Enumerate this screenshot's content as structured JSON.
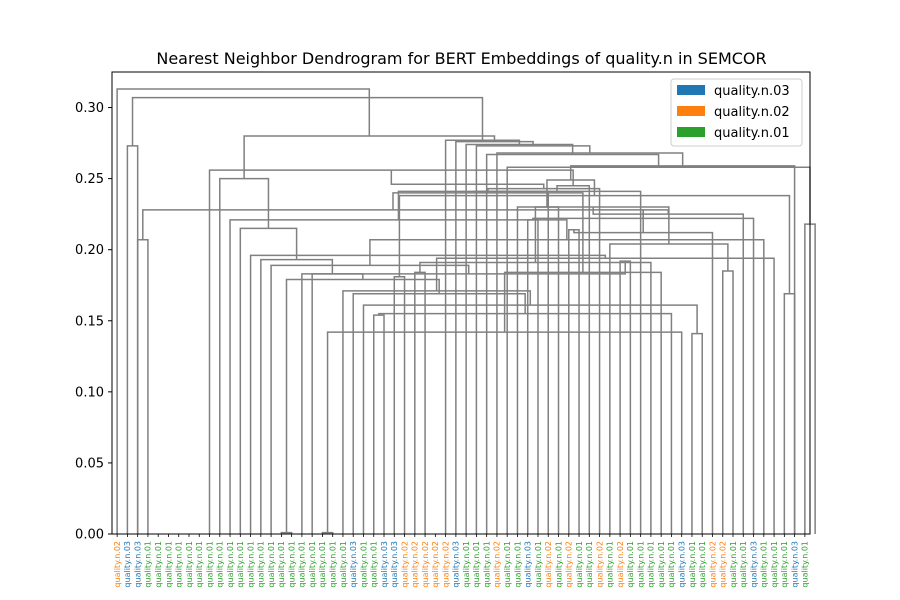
{
  "chart_data": {
    "type": "dendrogram",
    "title": "Nearest Neighbor Dendrogram for BERT Embeddings of quality.n in SEMCOR",
    "xlabel": "",
    "ylabel": "",
    "ylim": [
      0,
      0.325
    ],
    "yticks": [
      "0.00",
      "0.05",
      "0.10",
      "0.15",
      "0.20",
      "0.25",
      "0.30"
    ],
    "grid": false,
    "legend_position": "top-right",
    "link_color": "#808080",
    "senses": [
      {
        "name": "quality.n.03",
        "color": "#1f77b4"
      },
      {
        "name": "quality.n.02",
        "color": "#ff7f0e"
      },
      {
        "name": "quality.n.01",
        "color": "#2ca02c"
      }
    ],
    "leaves": [
      "quality.n.02",
      "quality.n.03",
      "quality.n.03",
      "quality.n.01",
      "quality.n.01",
      "quality.n.01",
      "quality.n.01",
      "quality.n.01",
      "quality.n.01",
      "quality.n.01",
      "quality.n.01",
      "quality.n.01",
      "quality.n.01",
      "quality.n.01",
      "quality.n.01",
      "quality.n.01",
      "quality.n.01",
      "quality.n.01",
      "quality.n.01",
      "quality.n.01",
      "quality.n.01",
      "quality.n.01",
      "quality.n.01",
      "quality.n.03",
      "quality.n.01",
      "quality.n.01",
      "quality.n.03",
      "quality.n.03",
      "quality.n.02",
      "quality.n.02",
      "quality.n.02",
      "quality.n.02",
      "quality.n.02",
      "quality.n.03",
      "quality.n.01",
      "quality.n.01",
      "quality.n.01",
      "quality.n.02",
      "quality.n.01",
      "quality.n.01",
      "quality.n.03",
      "quality.n.01",
      "quality.n.02",
      "quality.n.01",
      "quality.n.02",
      "quality.n.01",
      "quality.n.01",
      "quality.n.02",
      "quality.n.01",
      "quality.n.02",
      "quality.n.01",
      "quality.n.01",
      "quality.n.01",
      "quality.n.01",
      "quality.n.01",
      "quality.n.03",
      "quality.n.01",
      "quality.n.01",
      "quality.n.02",
      "quality.n.02",
      "quality.n.01",
      "quality.n.01",
      "quality.n.03",
      "quality.n.01",
      "quality.n.01",
      "quality.n.01",
      "quality.n.03",
      "quality.n.01"
    ],
    "links": [
      {
        "left": 16,
        "right": 17,
        "height": 0.001
      },
      {
        "left": 20,
        "right": 21,
        "height": 0.001
      },
      {
        "left": 56,
        "right": 57,
        "height": 0.141
      },
      {
        "left": 25,
        "right": 26,
        "height": 0.154
      },
      {
        "left": 55,
        "right": "L2",
        "height": 0.142
      },
      {
        "left": 54,
        "right": "L4",
        "height": 0.155
      },
      {
        "left": 24,
        "right": "L3",
        "height": 0.161
      },
      {
        "left": 23,
        "right": "L6",
        "height": 0.169
      },
      {
        "left": 22,
        "right": "L7",
        "height": 0.171
      },
      {
        "left": 65,
        "right": 66,
        "height": 0.169
      },
      {
        "left": 27,
        "right": 28,
        "height": 0.181
      },
      {
        "left": 29,
        "right": 30,
        "height": 0.184
      },
      {
        "left": 53,
        "right": "L5",
        "height": 0.184
      },
      {
        "left": 52,
        "right": "L12",
        "height": 0.191
      },
      {
        "left": 44,
        "right": 45,
        "height": 0.214
      },
      {
        "left": 59,
        "right": 60,
        "height": 0.185
      },
      {
        "left": 49,
        "right": 50,
        "height": 0.192
      },
      {
        "left": "L1",
        "right": "L8",
        "height": 0.179
      },
      {
        "left": 19,
        "right": "L17",
        "height": 0.183
      },
      {
        "left": 18,
        "right": "L18",
        "height": 0.183
      },
      {
        "left": 15,
        "right": "L19",
        "height": 0.189
      },
      {
        "left": 64,
        "right": "L9",
        "height": 0.194
      },
      {
        "left": 14,
        "right": "L20",
        "height": 0.193
      },
      {
        "left": 13,
        "right": "L22",
        "height": 0.196
      },
      {
        "left": 2,
        "right": 3,
        "height": 0.207
      },
      {
        "left": 58,
        "right": "L15",
        "height": 0.212
      },
      {
        "left": 48,
        "right": "L16",
        "height": 0.204
      },
      {
        "left": 40,
        "right": 41,
        "height": 0.221
      },
      {
        "left": 63,
        "right": "L21",
        "height": 0.207
      },
      {
        "left": 12,
        "right": "L23",
        "height": 0.215
      },
      {
        "left": 11,
        "right": "L29",
        "height": 0.221
      },
      {
        "left": 43,
        "right": "L14",
        "height": 0.23
      },
      {
        "left": 39,
        "right": "L27",
        "height": 0.23
      },
      {
        "left": 62,
        "right": "L28",
        "height": 0.222
      },
      {
        "left": 61,
        "right": "L33",
        "height": 0.225
      },
      {
        "left": "L25",
        "right": "L34",
        "height": 0.228
      },
      {
        "left": "L26",
        "right": "L35",
        "height": 0.228
      },
      {
        "left": "L10",
        "right": "L11",
        "height": 0.238
      },
      {
        "left": 42,
        "right": "L31",
        "height": 0.241
      },
      {
        "left": "L13",
        "right": "L36",
        "height": 0.24
      },
      {
        "left": 51,
        "right": "L39",
        "height": 0.241
      },
      {
        "left": 47,
        "right": "L40",
        "height": 0.243
      },
      {
        "left": 46,
        "right": "L41",
        "height": 0.245
      },
      {
        "left": 10,
        "right": "L30",
        "height": 0.25
      },
      {
        "left": 9,
        "right": "L43",
        "height": 0.256
      },
      {
        "left": "L32",
        "right": "L38",
        "height": 0.249
      },
      {
        "left": 67,
        "right": 68,
        "height": 0.218
      },
      {
        "left": "L45",
        "right": "L42",
        "height": 0.246
      },
      {
        "left": "L46",
        "right": 66,
        "height": 0.259
      },
      {
        "left": 38,
        "right": "L47",
        "height": 0.258
      },
      {
        "left": 37,
        "right": "L49",
        "height": 0.268
      },
      {
        "left": 36,
        "right": "L50",
        "height": 0.267
      },
      {
        "left": 35,
        "right": "L51",
        "height": 0.273
      },
      {
        "left": 34,
        "right": "L52",
        "height": 0.274
      },
      {
        "left": 33,
        "right": "L53",
        "height": 0.276
      },
      {
        "left": 32,
        "right": "L54",
        "height": 0.277
      },
      {
        "left": 1,
        "right": 2,
        "height": 0.273
      },
      {
        "left": "L44",
        "right": "L55",
        "height": 0.28
      },
      {
        "left": "L56",
        "right": "L57",
        "height": 0.307
      },
      {
        "left": 0,
        "right": "L58",
        "height": 0.313
      }
    ]
  },
  "legend": {
    "items": [
      "quality.n.03",
      "quality.n.02",
      "quality.n.01"
    ]
  }
}
